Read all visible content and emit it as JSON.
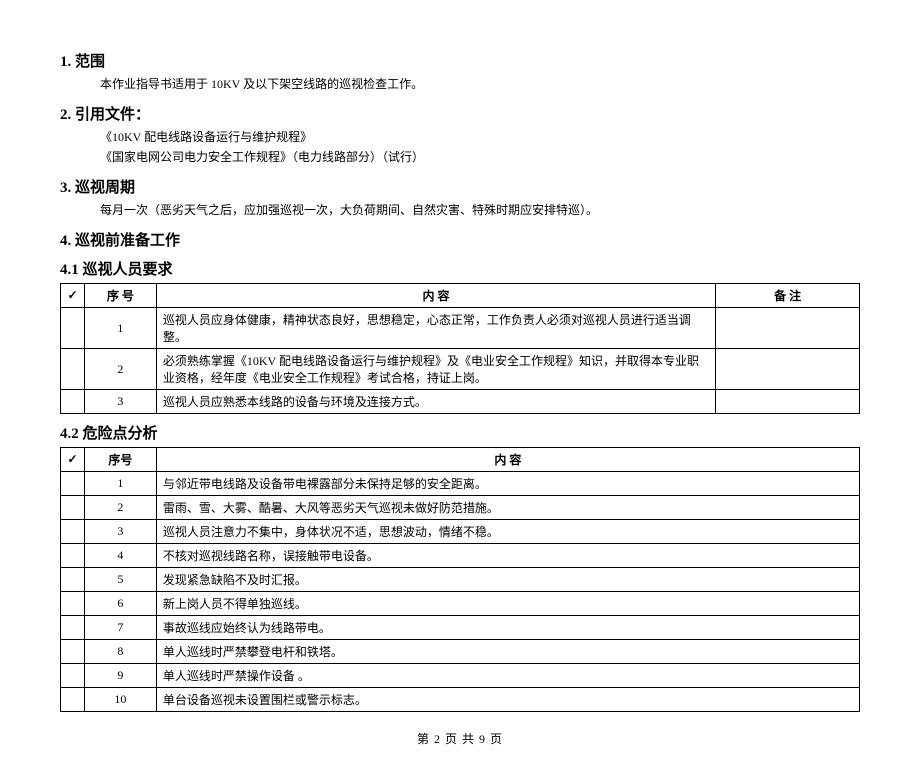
{
  "s1": {
    "heading": "1. 范围",
    "body": "本作业指导书适用于 10KV 及以下架空线路的巡视检查工作。"
  },
  "s2": {
    "heading": "2. 引用文件：",
    "line1": "《10KV 配电线路设备运行与维护规程》",
    "line2": "《国家电网公司电力安全工作规程》（电力线路部分）（试行）"
  },
  "s3": {
    "heading": "3. 巡视周期",
    "body": "每月一次（恶劣天气之后，应加强巡视一次，大负荷期间、自然灾害、特殊时期应安排特巡）。"
  },
  "s4": {
    "heading": "4. 巡视前准备工作"
  },
  "s41": {
    "heading": "4.1 巡视人员要求",
    "headers": {
      "check": "✓",
      "seq": "序  号",
      "content": "内     容",
      "remark": "备   注"
    },
    "rows": [
      {
        "seq": "1",
        "content": "巡视人员应身体健康，精神状态良好，思想稳定，心态正常，工作负责人必须对巡视人员进行适当调整。",
        "remark": ""
      },
      {
        "seq": "2",
        "content": "必须熟练掌握《10KV 配电线路设备运行与维护规程》及《电业安全工作规程》知识，并取得本专业职业资格，经年度《电业安全工作规程》考试合格，持证上岗。",
        "remark": ""
      },
      {
        "seq": "3",
        "content": "巡视人员应熟悉本线路的设备与环境及连接方式。",
        "remark": ""
      }
    ]
  },
  "s42": {
    "heading": "4.2 危险点分析",
    "headers": {
      "check": "✓",
      "seq": "序号",
      "content": "内     容"
    },
    "rows": [
      {
        "seq": "1",
        "content": "与邻近带电线路及设备带电裸露部分未保持足够的安全距离。"
      },
      {
        "seq": "2",
        "content": "雷雨、雪、大雾、酷暑、大风等恶劣天气巡视未做好防范措施。"
      },
      {
        "seq": "3",
        "content": "巡视人员注意力不集中，身体状况不适，思想波动，情绪不稳。"
      },
      {
        "seq": "4",
        "content": "不核对巡视线路名称，误接触带电设备。"
      },
      {
        "seq": "5",
        "content": "发现紧急缺陷不及时汇报。"
      },
      {
        "seq": "6",
        "content": "新上岗人员不得单独巡线。"
      },
      {
        "seq": "7",
        "content": "事故巡线应始终认为线路带电。"
      },
      {
        "seq": "8",
        "content": "单人巡线时严禁攀登电杆和铁塔。"
      },
      {
        "seq": "9",
        "content": "单人巡线时严禁操作设备   。"
      },
      {
        "seq": "10",
        "content": "单台设备巡视未设置围栏或警示标志。"
      }
    ]
  },
  "footer": "第 2 页 共 9 页"
}
